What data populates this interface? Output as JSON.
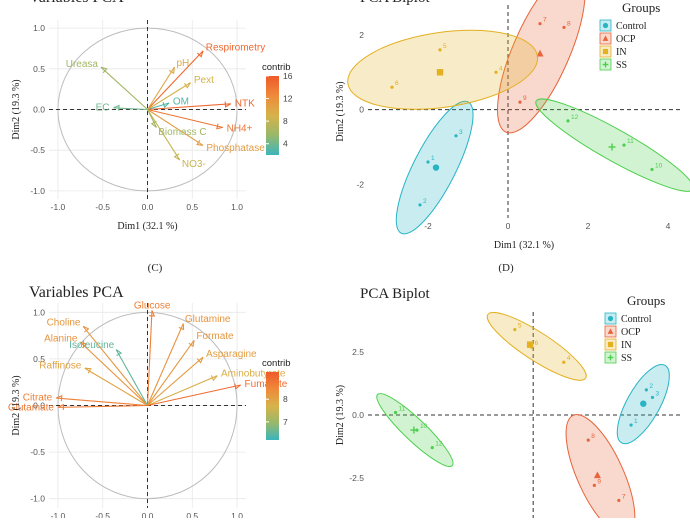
{
  "panel_labels": [
    "(C)",
    "(D)"
  ],
  "chart_data": [
    {
      "type": "scatter",
      "subtype": "pca-variables",
      "title": "Variables PCA",
      "xlabel": "Dim1 (32.1 %)",
      "ylabel": "Dim2 (19.3 %)",
      "xlim": [
        -1.1,
        1.1
      ],
      "ylim": [
        -1.1,
        1.1
      ],
      "xticks": [
        "-1.0",
        "-0.5",
        "0.0",
        "0.5",
        "1.0"
      ],
      "yticks": [
        "1.0",
        "0.5",
        "0.0",
        "-0.5",
        "-1.0"
      ],
      "colorbar": {
        "title": "contrib",
        "range": [
          2,
          16
        ],
        "ticks": [
          "16",
          "12",
          "8",
          "4"
        ]
      },
      "variables": [
        {
          "name": "Respirometry",
          "x": 0.62,
          "y": 0.72,
          "contrib": 15
        },
        {
          "name": "pH",
          "x": 0.3,
          "y": 0.52,
          "contrib": 10
        },
        {
          "name": "Pext",
          "x": 0.48,
          "y": 0.33,
          "contrib": 9
        },
        {
          "name": "OM",
          "x": 0.24,
          "y": 0.08,
          "contrib": 3
        },
        {
          "name": "NTK",
          "x": 0.93,
          "y": 0.07,
          "contrib": 15
        },
        {
          "name": "NH4+",
          "x": 0.84,
          "y": -0.22,
          "contrib": 14
        },
        {
          "name": "Phosphatase",
          "x": 0.62,
          "y": -0.44,
          "contrib": 11
        },
        {
          "name": "NO3-",
          "x": 0.36,
          "y": -0.62,
          "contrib": 8
        },
        {
          "name": "Biomass C",
          "x": 0.1,
          "y": -0.22,
          "contrib": 6
        },
        {
          "name": "Ureasa",
          "x": -0.52,
          "y": 0.52,
          "contrib": 6
        },
        {
          "name": "EC",
          "x": -0.38,
          "y": 0.02,
          "contrib": 4
        }
      ]
    },
    {
      "type": "scatter",
      "subtype": "pca-biplot",
      "title": "PCA Biplot",
      "xlabel": "Dim1 (32.1 %)",
      "ylabel": "Dim2 (19.3 %)",
      "xlim": [
        -3.5,
        4.3
      ],
      "ylim": [
        -2.9,
        2.8
      ],
      "xticks": [
        "-2",
        "0",
        "2",
        "4"
      ],
      "yticks": [
        "2",
        "0",
        "-2"
      ],
      "legend_title": "Groups",
      "legend_position": "top-right",
      "groups": [
        {
          "name": "Control",
          "color": "#27b5c4",
          "points": [
            {
              "x": -2.0,
              "y": -1.4,
              "label": "1"
            },
            {
              "x": -2.2,
              "y": -2.55,
              "label": "2"
            },
            {
              "x": -1.3,
              "y": -0.7,
              "label": "3"
            }
          ],
          "centroid": {
            "x": -1.8,
            "y": -1.55
          }
        },
        {
          "name": "OCP",
          "color": "#e8643a",
          "points": [
            {
              "x": 0.8,
              "y": 2.3,
              "label": "7"
            },
            {
              "x": 1.4,
              "y": 2.2,
              "label": "8"
            },
            {
              "x": 0.3,
              "y": 0.2,
              "label": "9"
            }
          ],
          "centroid": {
            "x": 0.8,
            "y": 1.5
          }
        },
        {
          "name": "IN",
          "color": "#e3b020",
          "points": [
            {
              "x": -1.7,
              "y": 1.6,
              "label": "5"
            },
            {
              "x": -2.9,
              "y": 0.6,
              "label": "6"
            },
            {
              "x": -0.3,
              "y": 1.0,
              "label": "4"
            }
          ],
          "centroid": {
            "x": -1.7,
            "y": 1.0
          }
        },
        {
          "name": "SS",
          "color": "#4ccf4c",
          "points": [
            {
              "x": 1.5,
              "y": -0.3,
              "label": "12"
            },
            {
              "x": 2.9,
              "y": -0.95,
              "label": "11"
            },
            {
              "x": 3.6,
              "y": -1.6,
              "label": "10"
            }
          ],
          "centroid": {
            "x": 2.6,
            "y": -1.0
          }
        }
      ]
    },
    {
      "type": "scatter",
      "subtype": "pca-variables",
      "title": "Variables PCA",
      "xlabel": "",
      "ylabel": "Dim2 (19.3 %)",
      "xlim": [
        -1.1,
        1.1
      ],
      "ylim": [
        -1.1,
        1.1
      ],
      "xticks": [
        "-1.0",
        "-0.5",
        "0.0",
        "0.5",
        "1.0"
      ],
      "yticks": [
        "1.0",
        "0.5",
        "0.0",
        "-0.5",
        "-1.0"
      ],
      "colorbar": {
        "title": "contrib",
        "range": [
          6.2,
          9.2
        ],
        "ticks": [
          "8",
          "7"
        ]
      },
      "variables": [
        {
          "name": "Glucose",
          "x": 0.05,
          "y": 1.02,
          "contrib": 8.6
        },
        {
          "name": "Glutamine",
          "x": 0.4,
          "y": 0.88,
          "contrib": 8.3
        },
        {
          "name": "Formate",
          "x": 0.52,
          "y": 0.7,
          "contrib": 8.2
        },
        {
          "name": "Asparagine",
          "x": 0.62,
          "y": 0.52,
          "contrib": 8.1
        },
        {
          "name": "Aminobutyrate",
          "x": 0.78,
          "y": 0.32,
          "contrib": 7.8
        },
        {
          "name": "Fumarate",
          "x": 1.04,
          "y": 0.22,
          "contrib": 8.9
        },
        {
          "name": "Choline",
          "x": -0.72,
          "y": 0.85,
          "contrib": 8.2
        },
        {
          "name": "Alanine",
          "x": -0.75,
          "y": 0.68,
          "contrib": 8.3
        },
        {
          "name": "Isoleucine",
          "x": -0.35,
          "y": 0.6,
          "contrib": 6.5
        },
        {
          "name": "Raffinose",
          "x": -0.7,
          "y": 0.4,
          "contrib": 8.0
        },
        {
          "name": "Citrate",
          "x": -1.02,
          "y": 0.08,
          "contrib": 8.6
        },
        {
          "name": "Glutamate",
          "x": -1.0,
          "y": -0.02,
          "contrib": 8.7
        }
      ]
    },
    {
      "type": "scatter",
      "subtype": "pca-biplot",
      "title": "PCA Biplot",
      "xlabel": "",
      "ylabel": "Dim2 (19.3 %)",
      "xlim": [
        -5.4,
        4.8
      ],
      "ylim": [
        -4.1,
        4.1
      ],
      "xticks": [],
      "yticks": [
        "2.5",
        "0.0",
        "-2.5"
      ],
      "legend_title": "Groups",
      "legend_position": "top-right",
      "groups": [
        {
          "name": "Control",
          "color": "#27b5c4",
          "points": [
            {
              "x": 3.7,
              "y": 1.0,
              "label": "2"
            },
            {
              "x": 3.9,
              "y": 0.7,
              "label": "3"
            },
            {
              "x": 3.2,
              "y": -0.4,
              "label": "1"
            }
          ],
          "centroid": {
            "x": 3.6,
            "y": 0.45
          }
        },
        {
          "name": "OCP",
          "color": "#e8643a",
          "points": [
            {
              "x": 1.8,
              "y": -1.0,
              "label": "8"
            },
            {
              "x": 2.0,
              "y": -2.8,
              "label": "9"
            },
            {
              "x": 2.8,
              "y": -3.4,
              "label": "7"
            }
          ],
          "centroid": {
            "x": 2.1,
            "y": -2.4
          }
        },
        {
          "name": "IN",
          "color": "#e3b020",
          "points": [
            {
              "x": -0.6,
              "y": 3.4,
              "label": "5"
            },
            {
              "x": -0.05,
              "y": 2.7,
              "label": "6"
            },
            {
              "x": 1.0,
              "y": 2.1,
              "label": "4"
            }
          ],
          "centroid": {
            "x": -0.1,
            "y": 2.8
          }
        },
        {
          "name": "SS",
          "color": "#4ccf4c",
          "points": [
            {
              "x": -4.5,
              "y": 0.1,
              "label": "11"
            },
            {
              "x": -3.8,
              "y": -0.6,
              "label": "10"
            },
            {
              "x": -3.3,
              "y": -1.3,
              "label": "12"
            }
          ],
          "centroid": {
            "x": -3.9,
            "y": -0.6
          }
        }
      ]
    }
  ]
}
